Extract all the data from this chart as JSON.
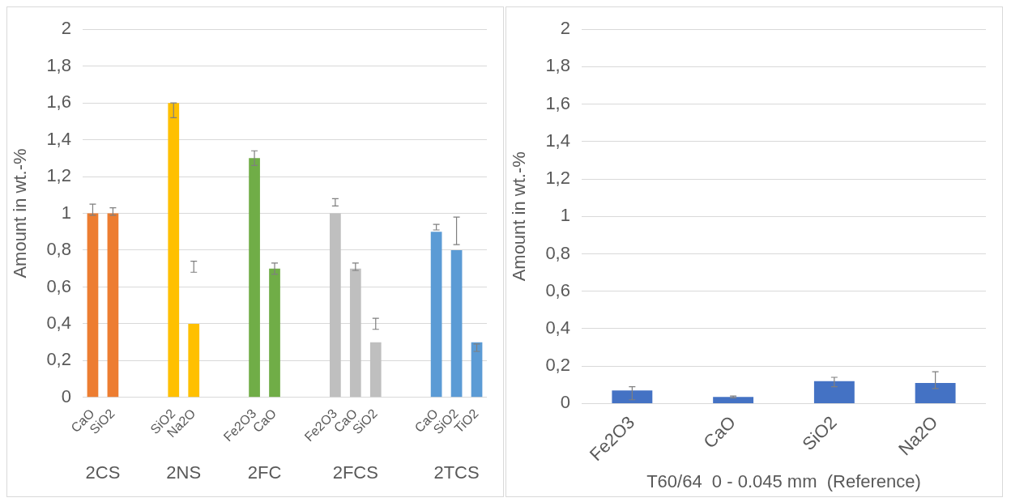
{
  "chart_data": [
    {
      "type": "bar",
      "ylabel": "Amount in wt.-%",
      "categories": [
        "CaO",
        "SiO2",
        null,
        null,
        "SiO2",
        "Na2O",
        null,
        null,
        "Fe2O3",
        "CaO",
        null,
        null,
        "Fe2O3",
        "CaO",
        "SiO2",
        null,
        null,
        "CaO",
        "SiO2",
        "TiO2"
      ],
      "values": [
        1.0,
        1.0,
        null,
        null,
        1.6,
        0.4,
        null,
        null,
        1.3,
        0.7,
        null,
        null,
        1.0,
        0.7,
        0.3,
        null,
        null,
        0.9,
        0.8,
        0.3
      ],
      "colors": [
        "#ed7d31",
        "#ed7d31",
        null,
        null,
        "#ffc000",
        "#ffc000",
        null,
        null,
        "#70ad47",
        "#70ad47",
        null,
        null,
        "#bfbfbf",
        "#bfbfbf",
        "#bfbfbf",
        null,
        null,
        "#5b9bd5",
        "#5b9bd5",
        "#5b9bd5"
      ],
      "errors": [
        [
          0.99,
          1.05
        ],
        [
          0.99,
          1.03
        ],
        null,
        null,
        [
          1.52,
          1.6
        ],
        [
          0.68,
          0.74
        ],
        null,
        null,
        [
          1.26,
          1.34
        ],
        [
          0.67,
          0.73
        ],
        null,
        null,
        [
          1.04,
          1.08
        ],
        [
          0.69,
          0.73
        ],
        [
          0.37,
          0.43
        ],
        null,
        null,
        [
          0.91,
          0.94
        ],
        [
          0.83,
          0.98
        ],
        [
          0.25,
          0.29
        ]
      ],
      "ylim": [
        0,
        2
      ],
      "yticks": [
        0,
        {
          "value": 0.2,
          "label": "0,2"
        },
        {
          "value": 0.4,
          "label": "0,4"
        },
        {
          "value": 0.6,
          "label": "0,6"
        },
        {
          "value": 0.8,
          "label": "0,8"
        },
        1,
        {
          "value": 1.2,
          "label": "1,2"
        },
        {
          "value": 1.4,
          "label": "1,4"
        },
        {
          "value": 1.6,
          "label": "1,6"
        },
        {
          "value": 1.8,
          "label": "1,8"
        },
        2
      ],
      "grid": "y",
      "legend": false,
      "annotations": [
        "2CS",
        "2NS",
        "2FC",
        "2FCS",
        "2TCS"
      ]
    },
    {
      "type": "bar",
      "ylabel": "Amount in wt.-%",
      "xlabel": "T60/64  0 - 0.045 mm  (Reference)",
      "categories": [
        "Fe2O3",
        "CaO",
        "SiO2",
        "Na2O"
      ],
      "values": [
        0.07,
        0.035,
        0.12,
        0.11
      ],
      "color": "#4472c4",
      "errors": [
        [
          0.02,
          0.09
        ],
        [
          0.03,
          0.04
        ],
        [
          0.09,
          0.14
        ],
        [
          0.08,
          0.17
        ]
      ],
      "ylim": [
        0,
        2
      ],
      "yticks": [
        0,
        {
          "value": 0.2,
          "label": "0,2"
        },
        {
          "value": 0.4,
          "label": "0,4"
        },
        {
          "value": 0.6,
          "label": "0,6"
        },
        {
          "value": 0.8,
          "label": "0,8"
        },
        1,
        {
          "value": 1.2,
          "label": "1,2"
        },
        {
          "value": 1.4,
          "label": "1,4"
        },
        {
          "value": 1.6,
          "label": "1,6"
        },
        {
          "value": 1.8,
          "label": "1,8"
        },
        2
      ],
      "grid": "y",
      "legend": false
    }
  ]
}
